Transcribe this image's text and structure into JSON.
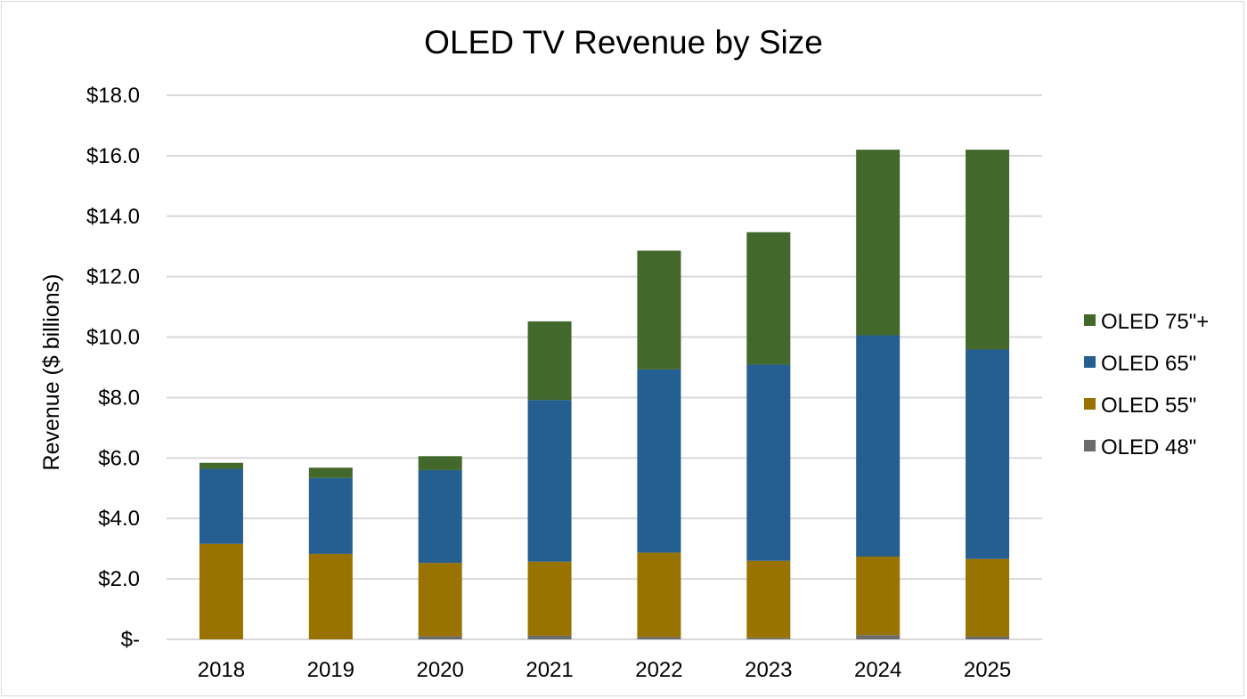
{
  "chart_data": {
    "type": "bar",
    "stacked": true,
    "title": "OLED TV Revenue by Size",
    "xlabel": "",
    "ylabel": "Revenue ($ billions)",
    "ylim": [
      0,
      18
    ],
    "yticks": [
      0,
      2,
      4,
      6,
      8,
      10,
      12,
      14,
      16,
      18
    ],
    "ytick_labels": [
      "$-",
      "$2.0",
      "$4.0",
      "$6.0",
      "$8.0",
      "$10.0",
      "$12.0",
      "$14.0",
      "$16.0",
      "$18.0"
    ],
    "grid": true,
    "legend_position": "right",
    "categories": [
      "2018",
      "2019",
      "2020",
      "2021",
      "2022",
      "2023",
      "2024",
      "2025"
    ],
    "series": [
      {
        "name": "OLED 48\"",
        "color": "#6b6b6b",
        "values": [
          0.0,
          0.0,
          0.1,
          0.12,
          0.08,
          0.05,
          0.14,
          0.09
        ]
      },
      {
        "name": "OLED 55\"",
        "color": "#997300",
        "values": [
          3.16,
          2.83,
          2.43,
          2.45,
          2.79,
          2.55,
          2.6,
          2.57
        ]
      },
      {
        "name": "OLED 65\"",
        "color": "#255e91",
        "values": [
          2.48,
          2.51,
          3.07,
          5.35,
          6.06,
          6.49,
          7.32,
          6.93
        ]
      },
      {
        "name": "OLED 75\"+",
        "color": "#43682b",
        "values": [
          0.2,
          0.34,
          0.46,
          2.6,
          3.93,
          4.38,
          6.14,
          6.61
        ]
      }
    ],
    "legend_order": [
      "OLED 75\"+",
      "OLED 65\"",
      "OLED 55\"",
      "OLED 48\""
    ]
  }
}
